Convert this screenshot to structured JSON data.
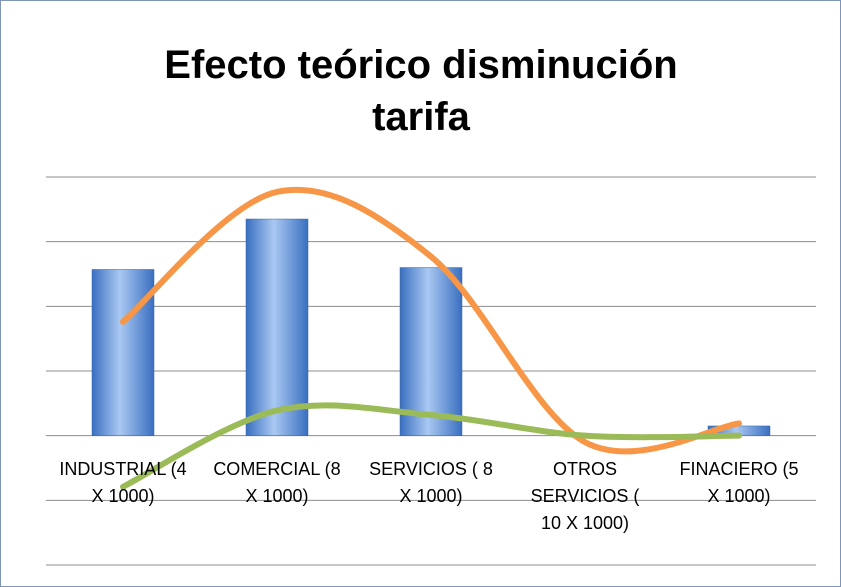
{
  "chart_data": {
    "type": "bar",
    "title": "Efecto teórico disminución tarifa",
    "categories": [
      "INDUSTRIAL (4 X 1000)",
      "COMERCIAL (8 X 1000)",
      "SERVICIOS ( 8 X 1000)",
      "OTROS SERVICIOS ( 10 X 1000)",
      "FINACIERO (5 X 1000)"
    ],
    "series": [
      {
        "type": "bar",
        "color": "#4f81bd",
        "values": [
          2.57,
          3.35,
          2.6,
          0,
          0.15
        ]
      },
      {
        "type": "line",
        "color": "#f79646",
        "values": [
          1.76,
          3.77,
          2.77,
          -0.1,
          0.19
        ]
      },
      {
        "type": "line",
        "color": "#9bbb59",
        "values": [
          -0.79,
          0.39,
          0.32,
          0,
          0
        ]
      }
    ],
    "ylim": [
      -2,
      4
    ],
    "yticks": [
      -2,
      -1,
      0,
      1,
      2,
      3,
      4
    ],
    "grid": true,
    "smooth": true
  }
}
